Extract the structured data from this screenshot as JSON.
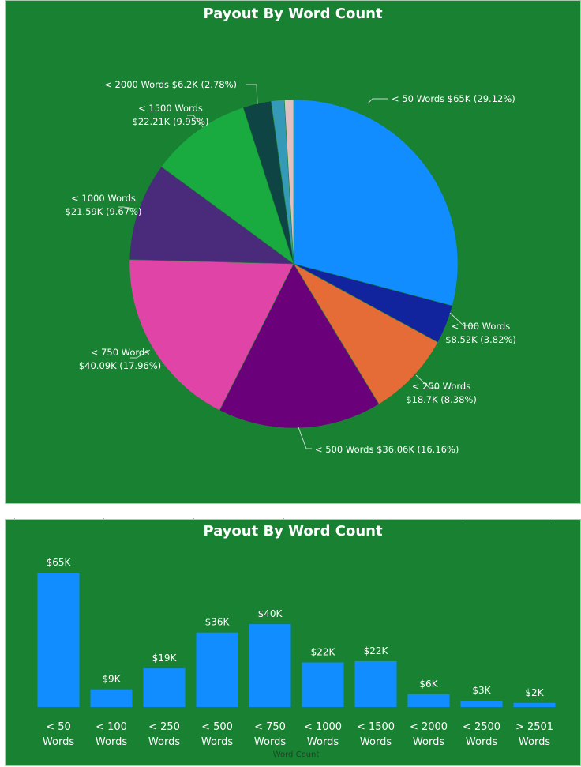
{
  "colors": {
    "panel_bg": "#198232",
    "bar_color": "#118DFF"
  },
  "chart_data": [
    {
      "type": "pie",
      "title": "Payout By Word Count",
      "slices": [
        {
          "name": "< 50 Words",
          "value_label": "$65K",
          "pct_label": "(29.12%)",
          "value": 65,
          "percent": 29.12,
          "color": "#118DFF"
        },
        {
          "name": "< 100 Words",
          "value_label": "$8.52K",
          "pct_label": "(3.82%)",
          "value": 8.52,
          "percent": 3.82,
          "color": "#12239E"
        },
        {
          "name": "< 250 Words",
          "value_label": "$18.7K",
          "pct_label": "(8.38%)",
          "value": 18.7,
          "percent": 8.38,
          "color": "#E66C37"
        },
        {
          "name": "< 500 Words",
          "value_label": "$36.06K",
          "pct_label": "(16.16%)",
          "value": 36.06,
          "percent": 16.16,
          "color": "#6B007B"
        },
        {
          "name": "< 750 Words",
          "value_label": "$40.09K",
          "pct_label": "(17.96%)",
          "value": 40.09,
          "percent": 17.96,
          "color": "#E044A7"
        },
        {
          "name": "< 1000 Words",
          "value_label": "$21.59K",
          "pct_label": "(9.67%)",
          "value": 21.59,
          "percent": 9.67,
          "color": "#4A2A7A"
        },
        {
          "name": "< 1500 Words",
          "value_label": "$22.21K",
          "pct_label": "(9.95%)",
          "value": 22.21,
          "percent": 9.95,
          "color": "#1AAB40"
        },
        {
          "name": "< 2000 Words",
          "value_label": "$6.2K",
          "pct_label": "(2.78%)",
          "value": 6.2,
          "percent": 2.78,
          "color": "#0E4444"
        },
        {
          "name": "< 2500 Words",
          "value_label": "",
          "pct_label": "",
          "value": 3,
          "percent": 1.3,
          "color": "#3599B8"
        },
        {
          "name": "> 2501 Words",
          "value_label": "",
          "pct_label": "",
          "value": 2,
          "percent": 0.9,
          "color": "#DFBFBF"
        }
      ]
    },
    {
      "type": "bar",
      "title": "Payout By Word Count",
      "xlabel": "Word Count",
      "ylabel": "",
      "ylim": [
        0,
        65
      ],
      "categories": [
        "< 50 Words",
        "< 100 Words",
        "< 250 Words",
        "< 500 Words",
        "< 750 Words",
        "< 1000 Words",
        "< 1500 Words",
        "< 2000 Words",
        "< 2500 Words",
        "> 2501 Words"
      ],
      "category_lines": [
        [
          "< 50",
          "Words"
        ],
        [
          "< 100",
          "Words"
        ],
        [
          "< 250",
          "Words"
        ],
        [
          "< 500",
          "Words"
        ],
        [
          "< 750",
          "Words"
        ],
        [
          "< 1000",
          "Words"
        ],
        [
          "< 1500",
          "Words"
        ],
        [
          "< 2000",
          "Words"
        ],
        [
          "< 2500",
          "Words"
        ],
        [
          "> 2501",
          "Words"
        ]
      ],
      "values": [
        65,
        8.52,
        18.7,
        36.06,
        40.09,
        21.59,
        22.21,
        6.2,
        3,
        2
      ],
      "data_labels": [
        "$65K",
        "$9K",
        "$19K",
        "$36K",
        "$40K",
        "$22K",
        "$22K",
        "$6K",
        "$3K",
        "$2K"
      ]
    }
  ]
}
